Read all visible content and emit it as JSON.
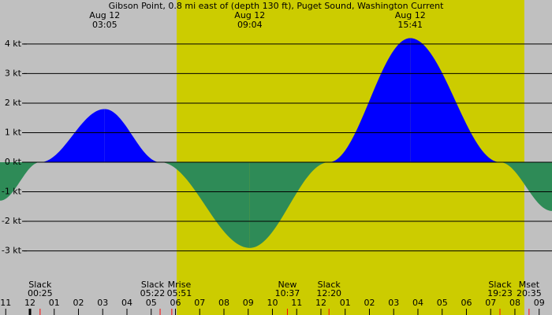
{
  "chart_data": {
    "type": "tide-current",
    "title": "Gibson Point, 0.8 mi east of (depth 130 ft), Puget Sound, Washington Current",
    "x": [
      -1.236,
      0.417,
      3.083,
      5.367,
      9.067,
      12.333,
      15.683,
      19.383,
      21.53
    ],
    "values": [
      -1.3,
      0,
      1.8,
      0,
      -2.9,
      0,
      4.2,
      0,
      -1.65
    ],
    "flood_color": "#0000ff",
    "ebb_color": "#2e8b57",
    "background_color": "#c0c0c0",
    "daylight_color": "#cccc00",
    "daylight": [
      6.05,
      20.39
    ],
    "xlim": [
      -1.236,
      21.53
    ],
    "ylim": [
      -5.17,
      5.49
    ],
    "yticks": [
      {
        "value": 4,
        "label": "4 kt"
      },
      {
        "value": 3,
        "label": "3 kt"
      },
      {
        "value": 2,
        "label": "2 kt"
      },
      {
        "value": 1,
        "label": "1 kt"
      },
      {
        "value": 0,
        "label": "0 kt"
      },
      {
        "value": -1,
        "label": "-1 kt"
      },
      {
        "value": -2,
        "label": "-2 kt"
      },
      {
        "value": -3,
        "label": "-3 kt"
      }
    ],
    "grid": true,
    "xticks": [
      {
        "value": -1,
        "label": "11"
      },
      {
        "value": 0,
        "label": "12"
      },
      {
        "value": 1,
        "label": "01"
      },
      {
        "value": 2,
        "label": "02"
      },
      {
        "value": 3,
        "label": "03"
      },
      {
        "value": 4,
        "label": "04"
      },
      {
        "value": 5,
        "label": "05"
      },
      {
        "value": 6,
        "label": "06"
      },
      {
        "value": 7,
        "label": "07"
      },
      {
        "value": 8,
        "label": "08"
      },
      {
        "value": 9,
        "label": "09"
      },
      {
        "value": 10,
        "label": "10"
      },
      {
        "value": 11,
        "label": "11"
      },
      {
        "value": 12,
        "label": "12"
      },
      {
        "value": 13,
        "label": "01"
      },
      {
        "value": 14,
        "label": "02"
      },
      {
        "value": 15,
        "label": "03"
      },
      {
        "value": 16,
        "label": "04"
      },
      {
        "value": 17,
        "label": "05"
      },
      {
        "value": 18,
        "label": "06"
      },
      {
        "value": 19,
        "label": "07"
      },
      {
        "value": 20,
        "label": "08"
      },
      {
        "value": 21,
        "label": "09"
      }
    ],
    "top_labels": [
      {
        "date": "Aug 12",
        "time": {
          "value": 3.083,
          "label": "03:05"
        }
      },
      {
        "date": "Aug 12",
        "time": {
          "value": 9.067,
          "label": "09:04"
        }
      },
      {
        "date": "Aug 12",
        "time": {
          "value": 15.683,
          "label": "15:41"
        }
      }
    ],
    "events": [
      {
        "label": "Slack",
        "time": {
          "value": 0.417,
          "label": "00:25"
        }
      },
      {
        "label": "Slack",
        "time": {
          "value": 5.367,
          "label": "05:22"
        }
      },
      {
        "label": "Mrise",
        "time": {
          "value": 5.85,
          "label": "05:51"
        }
      },
      {
        "label": "New",
        "time": {
          "value": 10.617,
          "label": "10:37"
        }
      },
      {
        "label": "Slack",
        "time": {
          "value": 12.333,
          "label": "12:20"
        }
      },
      {
        "label": "Slack",
        "time": {
          "value": 19.383,
          "label": "19:23"
        }
      },
      {
        "label": "Mset",
        "time": {
          "value": 20.583,
          "label": "20:35"
        }
      }
    ]
  }
}
